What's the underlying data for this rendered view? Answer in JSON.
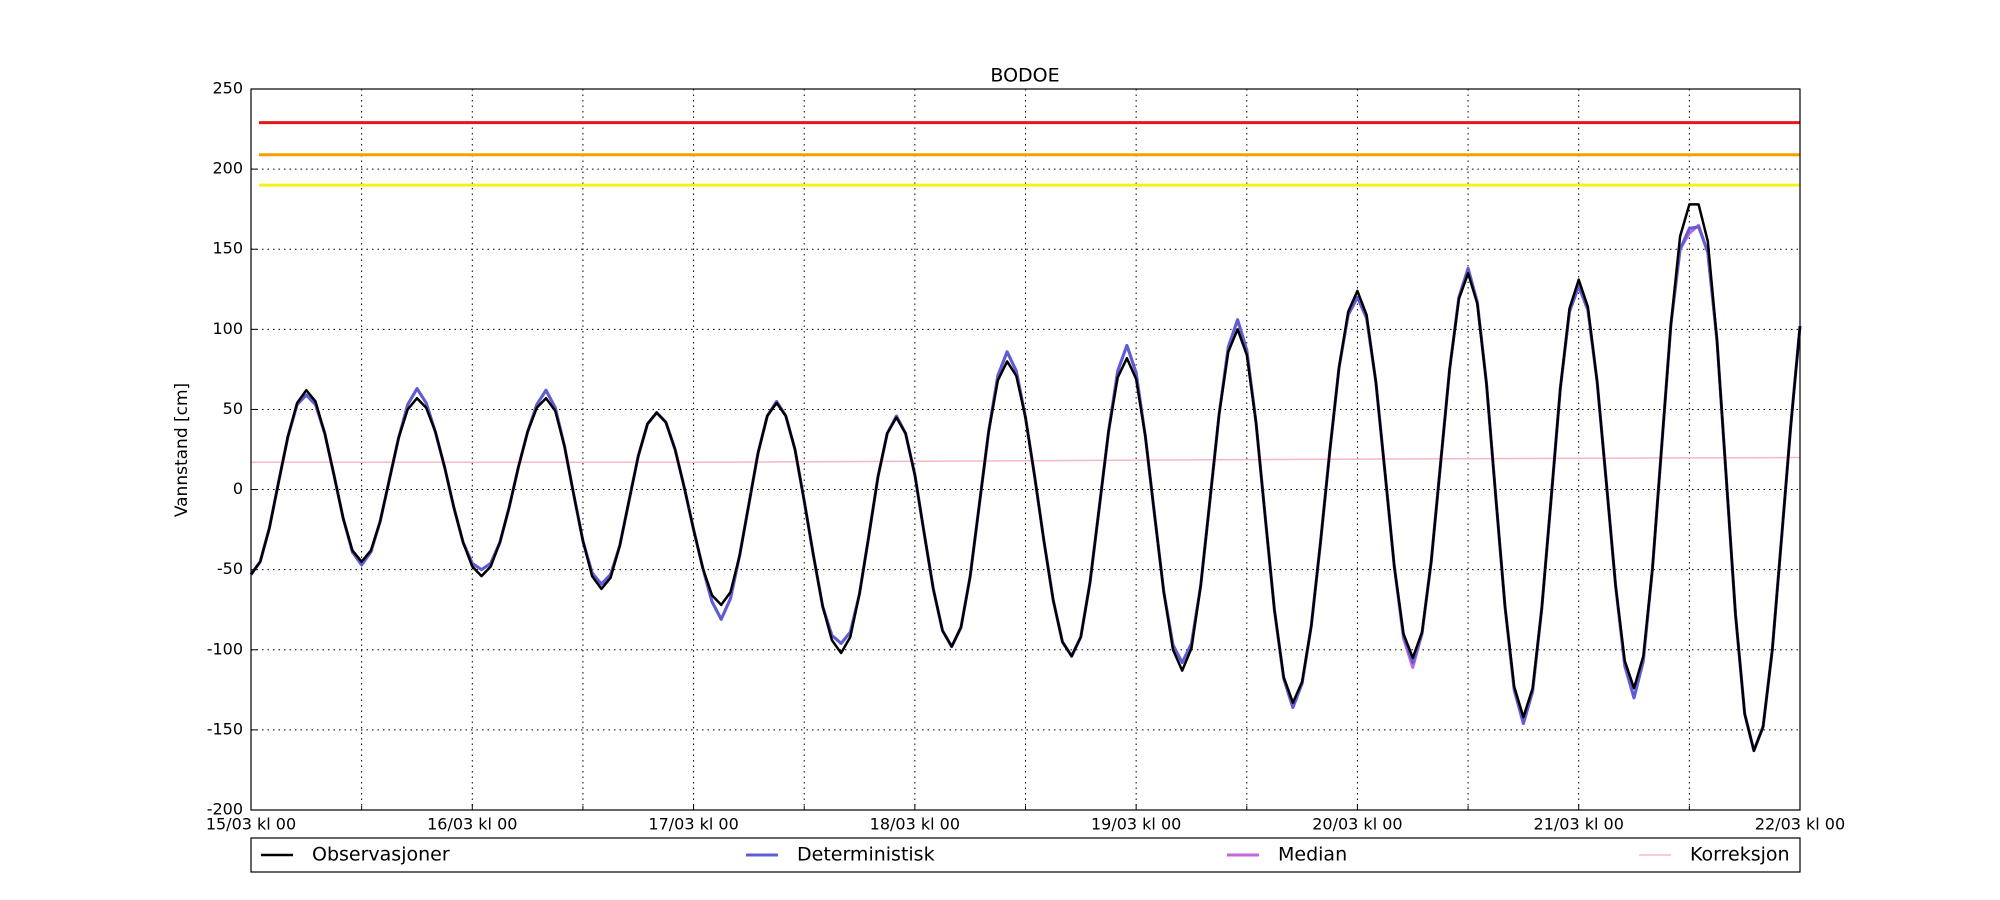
{
  "chart_data": {
    "type": "line",
    "title": "BODOE",
    "ylabel": "Vannstand [cm]",
    "xlim": [
      0,
      168
    ],
    "ylim": [
      -200,
      250
    ],
    "xticks": [
      {
        "value": 0,
        "label": "15/03 kl 00"
      },
      {
        "value": 24,
        "label": "16/03 kl 00"
      },
      {
        "value": 48,
        "label": "17/03 kl 00"
      },
      {
        "value": 72,
        "label": "18/03 kl 00"
      },
      {
        "value": 96,
        "label": "19/03 kl 00"
      },
      {
        "value": 120,
        "label": "20/03 kl 00"
      },
      {
        "value": 144,
        "label": "21/03 kl 00"
      },
      {
        "value": 168,
        "label": "22/03 kl 00"
      }
    ],
    "xticks_minor": [
      12,
      36,
      60,
      84,
      108,
      132,
      156
    ],
    "yticks": [
      -200,
      -150,
      -100,
      -50,
      0,
      50,
      100,
      150,
      200,
      250
    ],
    "grid": true,
    "legend": "bottom",
    "thresholds": [
      {
        "value": 229,
        "color": "#e8141c"
      },
      {
        "value": 209,
        "color": "#f5a000"
      },
      {
        "value": 190,
        "color": "#f5f020"
      }
    ],
    "x": [
      0,
      1,
      2,
      3,
      4,
      5,
      6,
      7,
      8,
      9,
      10,
      11,
      12,
      13,
      14,
      15,
      16,
      17,
      18,
      19,
      20,
      21,
      22,
      23,
      24,
      25,
      26,
      27,
      28,
      29,
      30,
      31,
      32,
      33,
      34,
      35,
      36,
      37,
      38,
      39,
      40,
      41,
      42,
      43,
      44,
      45,
      46,
      47,
      48,
      49,
      50,
      51,
      52,
      53,
      54,
      55,
      56,
      57,
      58,
      59,
      60,
      61,
      62,
      63,
      64,
      65,
      66,
      67,
      68,
      69,
      70,
      71,
      72,
      73,
      74,
      75,
      76,
      77,
      78,
      79,
      80,
      81,
      82,
      83,
      84,
      85,
      86,
      87,
      88,
      89,
      90,
      91,
      92,
      93,
      94,
      95,
      96,
      97,
      98,
      99,
      100,
      101,
      102,
      103,
      104,
      105,
      106,
      107,
      108,
      109,
      110,
      111,
      112,
      113,
      114,
      115,
      116,
      117,
      118,
      119,
      120,
      121,
      122,
      123,
      124,
      125,
      126,
      127,
      128,
      129,
      130,
      131,
      132,
      133,
      134,
      135,
      136,
      137,
      138,
      139,
      140,
      141,
      142,
      143,
      144,
      145,
      146,
      147,
      148,
      149,
      150,
      151,
      152,
      153,
      154,
      155,
      156,
      157,
      158,
      159,
      160,
      161,
      162,
      163,
      164,
      165,
      166,
      167,
      168
    ],
    "series": [
      {
        "name": "Observasjoner",
        "color": "#000000",
        "width": 2.5,
        "values": [
          -53,
          -45,
          -24,
          5,
          33,
          54,
          62,
          55,
          35,
          9,
          -18,
          -38,
          -45,
          -38,
          -20,
          6,
          32,
          50,
          57,
          51,
          36,
          14,
          -11,
          -33,
          -48,
          -54,
          -48,
          -33,
          -11,
          14,
          36,
          51,
          57,
          49,
          27,
          -3,
          -32,
          -54,
          -62,
          -55,
          -35,
          -7,
          21,
          41,
          48,
          42,
          25,
          1,
          -25,
          -49,
          -66,
          -72,
          -64,
          -41,
          -9,
          23,
          46,
          54,
          46,
          25,
          -7,
          -41,
          -73,
          -94,
          -102,
          -92,
          -65,
          -29,
          8,
          35,
          45,
          35,
          9,
          -27,
          -62,
          -88,
          -98,
          -86,
          -54,
          -9,
          36,
          68,
          80,
          71,
          45,
          8,
          -32,
          -69,
          -95,
          -104,
          -92,
          -58,
          -11,
          36,
          70,
          82,
          69,
          33,
          -16,
          -64,
          -100,
          -113,
          -99,
          -60,
          -7,
          47,
          86,
          100,
          84,
          42,
          -17,
          -75,
          -117,
          -133,
          -120,
          -85,
          -33,
          24,
          76,
          111,
          124,
          109,
          67,
          10,
          -48,
          -90,
          -105,
          -89,
          -45,
          15,
          75,
          119,
          135,
          116,
          66,
          -4,
          -73,
          -123,
          -142,
          -124,
          -74,
          -6,
          63,
          113,
          131,
          114,
          67,
          4,
          -60,
          -107,
          -124,
          -104,
          -49,
          27,
          103,
          158,
          178,
          178,
          155,
          93,
          8,
          -78,
          -140,
          -163,
          -148,
          -100,
          -30,
          40,
          102
        ]
      },
      {
        "name": "Deterministisk",
        "color": "#5d5dd4",
        "width": 3,
        "values": [
          -53,
          -45,
          -24,
          5,
          33,
          53,
          59,
          53,
          35,
          9,
          -18,
          -39,
          -47,
          -39,
          -20,
          6,
          32,
          53,
          63,
          54,
          36,
          14,
          -11,
          -33,
          -46,
          -50,
          -46,
          -33,
          -11,
          14,
          36,
          53,
          62,
          51,
          27,
          -3,
          -32,
          -52,
          -59,
          -53,
          -35,
          -7,
          21,
          41,
          48,
          42,
          25,
          1,
          -25,
          -49,
          -70,
          -81,
          -68,
          -41,
          -9,
          23,
          46,
          55,
          46,
          25,
          -7,
          -41,
          -73,
          -91,
          -96,
          -89,
          -65,
          -29,
          8,
          35,
          46,
          35,
          9,
          -27,
          -62,
          -88,
          -98,
          -86,
          -54,
          -9,
          36,
          71,
          86,
          74,
          45,
          8,
          -32,
          -69,
          -95,
          -104,
          -92,
          -58,
          -11,
          36,
          74,
          90,
          73,
          33,
          -16,
          -64,
          -97,
          -108,
          -96,
          -60,
          -7,
          47,
          89,
          106,
          87,
          42,
          -17,
          -75,
          -118,
          -136,
          -121,
          -85,
          -33,
          24,
          76,
          109,
          120,
          107,
          67,
          10,
          -48,
          -91,
          -108,
          -90,
          -45,
          15,
          75,
          120,
          138,
          117,
          66,
          -4,
          -73,
          -125,
          -146,
          -126,
          -74,
          -6,
          63,
          111,
          127,
          112,
          67,
          4,
          -60,
          -110,
          -130,
          -107,
          -49,
          27,
          103,
          150,
          163,
          164,
          148,
          93,
          8,
          -78,
          -140,
          -163,
          -148,
          -100,
          -30,
          40,
          102
        ]
      },
      {
        "name": "Median",
        "color": "#c466dc",
        "width": 3,
        "values": [
          -53,
          -45,
          -24,
          5,
          33,
          53,
          59,
          53,
          35,
          9,
          -18,
          -39,
          -47,
          -39,
          -20,
          6,
          32,
          53,
          63,
          54,
          36,
          14,
          -11,
          -33,
          -46,
          -50,
          -46,
          -33,
          -11,
          14,
          36,
          53,
          62,
          51,
          27,
          -3,
          -32,
          -52,
          -59,
          -53,
          -35,
          -7,
          21,
          41,
          48,
          42,
          25,
          1,
          -25,
          -49,
          -70,
          -81,
          -68,
          -41,
          -9,
          23,
          46,
          55,
          46,
          25,
          -7,
          -41,
          -73,
          -91,
          -96,
          -89,
          -65,
          -29,
          8,
          35,
          46,
          35,
          9,
          -27,
          -62,
          -88,
          -98,
          -86,
          -54,
          -9,
          36,
          71,
          86,
          74,
          45,
          8,
          -32,
          -69,
          -95,
          -104,
          -92,
          -58,
          -11,
          36,
          74,
          90,
          73,
          33,
          -16,
          -64,
          -97,
          -108,
          -96,
          -60,
          -7,
          47,
          89,
          106,
          87,
          42,
          -17,
          -75,
          -118,
          -136,
          -121,
          -85,
          -33,
          24,
          76,
          109,
          120,
          107,
          67,
          10,
          -48,
          -93,
          -111,
          -90,
          -45,
          15,
          75,
          120,
          138,
          117,
          66,
          -4,
          -73,
          -125,
          -146,
          -126,
          -74,
          -6,
          63,
          111,
          127,
          112,
          67,
          4,
          -60,
          -110,
          -130,
          -107,
          -49,
          27,
          103,
          150,
          160,
          165,
          148,
          93,
          8,
          -78,
          -140,
          -163,
          -148,
          -100,
          -30,
          40,
          102
        ]
      },
      {
        "name": "Korreksjon",
        "color": "#f4b8c8",
        "width": 1.5,
        "x": [
          0,
          48,
          84,
          120,
          168
        ],
        "values": [
          17,
          17,
          18,
          19,
          20
        ]
      }
    ]
  }
}
